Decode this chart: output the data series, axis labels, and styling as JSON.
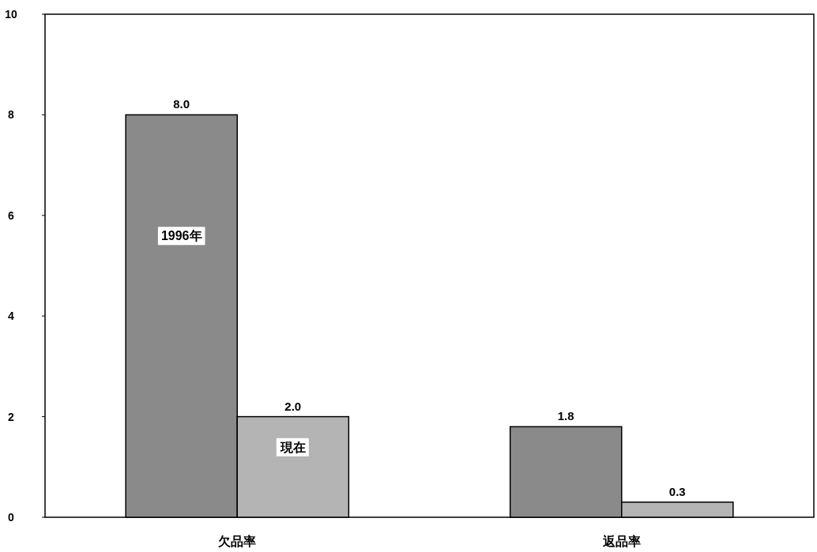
{
  "chart_data": {
    "type": "bar",
    "categories": [
      "欠品率",
      "返品率"
    ],
    "series": [
      {
        "name": "1996年",
        "color": "#8a8a8a",
        "values": [
          8.0,
          1.8
        ],
        "value_labels": [
          "8.0",
          "1.8"
        ]
      },
      {
        "name": "現在",
        "color": "#b4b4b4",
        "values": [
          2.0,
          0.3
        ],
        "value_labels": [
          "2.0",
          "0.3"
        ]
      }
    ],
    "ylim": [
      0,
      10
    ],
    "yticks": [
      0,
      2,
      4,
      6,
      8,
      10
    ],
    "grid": false,
    "legend": false
  }
}
